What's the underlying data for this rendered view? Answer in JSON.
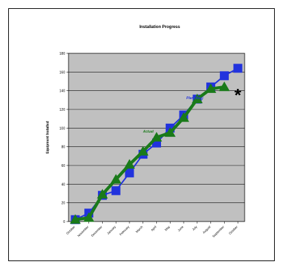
{
  "chart_data": {
    "type": "line",
    "title": "Installation Progress",
    "xlabel": "",
    "ylabel": "Equipment Installed",
    "ylim": [
      0,
      180
    ],
    "yticks": [
      0,
      20,
      40,
      60,
      80,
      100,
      120,
      140,
      160,
      180
    ],
    "grid": true,
    "categories": [
      "October",
      "November",
      "December",
      "January",
      "February",
      "March",
      "April",
      "May",
      "June",
      "July",
      "August",
      "September",
      "October"
    ],
    "series": [
      {
        "name": "Plan (Rev)",
        "color": "#2233dd",
        "marker": "square",
        "values": [
          2,
          9,
          28,
          33,
          52,
          72,
          84,
          100,
          114,
          131,
          144,
          156,
          164
        ]
      },
      {
        "name": "Actual",
        "color": "#1a7a1a",
        "marker": "triangle",
        "values": [
          2,
          4,
          29,
          45,
          61,
          75,
          90,
          95,
          111,
          131,
          142,
          144,
          null
        ]
      }
    ],
    "annotations": [
      {
        "text": "*",
        "x": "October",
        "y": 136
      }
    ]
  }
}
